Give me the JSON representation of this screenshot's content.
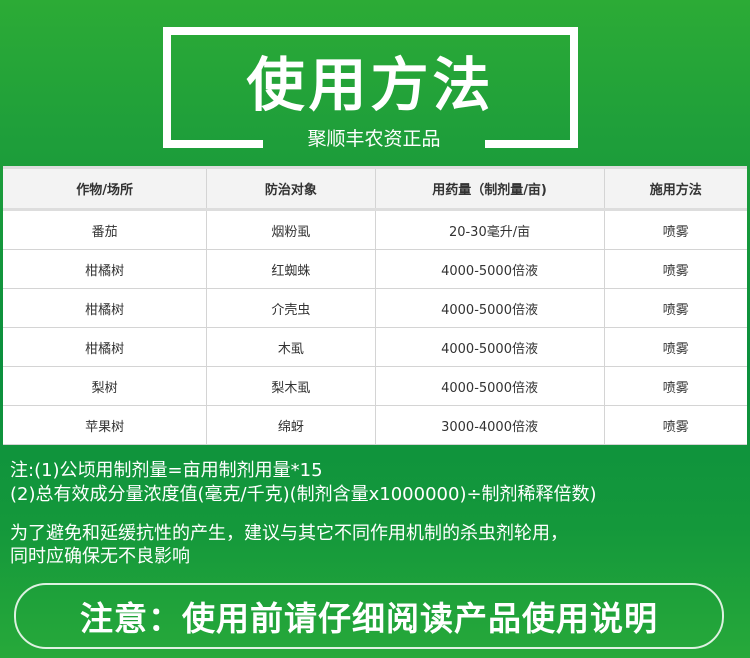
{
  "header": {
    "title": "使用方法",
    "subtitle": "聚顺丰农资正品"
  },
  "table": {
    "columns": [
      "作物/场所",
      "防治对象",
      "用药量（制剂量/亩)",
      "施用方法"
    ],
    "rows": [
      [
        "番茄",
        "烟粉虱",
        "20-30毫升/亩",
        "喷雾"
      ],
      [
        "柑橘树",
        "红蜘蛛",
        "4000-5000倍液",
        "喷雾"
      ],
      [
        "柑橘树",
        "介壳虫",
        "4000-5000倍液",
        "喷雾"
      ],
      [
        "柑橘树",
        "木虱",
        "4000-5000倍液",
        "喷雾"
      ],
      [
        "梨树",
        "梨木虱",
        "4000-5000倍液",
        "喷雾"
      ],
      [
        "苹果树",
        "绵蚜",
        "3000-4000倍液",
        "喷雾"
      ]
    ]
  },
  "notes": {
    "line1": "注:(1)公顷用制剂量=亩用制剂用量*15",
    "line2": "(2)总有效成分量浓度值(毫克/千克)(制剂含量x1000000)÷制剂稀释倍数)",
    "line3": "为了避免和延缓抗性的产生，建议与其它不同作用机制的杀虫剂轮用，",
    "line4": "同时应确保无不良影响"
  },
  "warning": "注意：使用前请仔细阅读产品使用说明",
  "colors": {
    "background": "#0b8f3d",
    "accent": "#2cab36"
  }
}
